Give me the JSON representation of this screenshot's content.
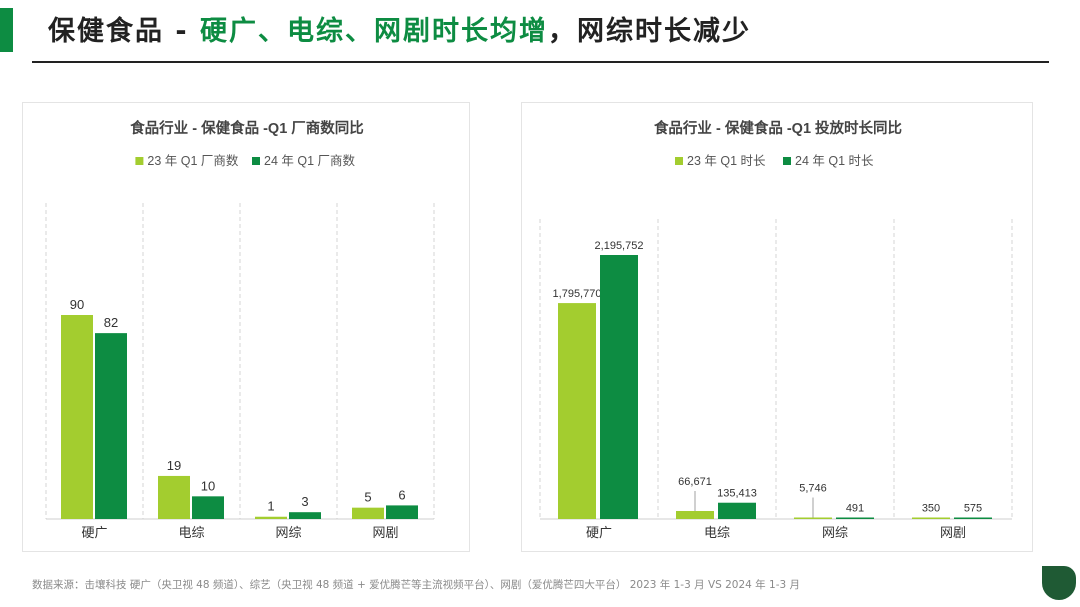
{
  "title": {
    "prefix": "保健食品 - ",
    "highlight": "硬广、电综、网剧时长均增",
    "suffix": "，网综时长减少"
  },
  "colors": {
    "series23": "#a3cd2f",
    "series24": "#0d8c42",
    "accent": "#0d8c42"
  },
  "chart_data": [
    {
      "type": "bar",
      "title": "食品行业 - 保健食品 -Q1 厂商数同比",
      "categories": [
        "硬广",
        "电综",
        "网综",
        "网剧"
      ],
      "series": [
        {
          "name": "23 年 Q1 厂商数",
          "values": [
            90,
            19,
            1,
            5
          ],
          "labels": [
            "90",
            "19",
            "1",
            "5"
          ]
        },
        {
          "name": "24 年 Q1 厂商数",
          "values": [
            82,
            10,
            3,
            6
          ],
          "labels": [
            "82",
            "10",
            "3",
            "6"
          ]
        }
      ],
      "ylim": [
        0,
        90
      ],
      "legend": "top",
      "xlabel": "",
      "ylabel": ""
    },
    {
      "type": "bar",
      "title": "食品行业 - 保健食品 -Q1 投放时长同比",
      "categories": [
        "硬广",
        "电综",
        "网综",
        "网剧"
      ],
      "series": [
        {
          "name": "23 年 Q1 时长",
          "values": [
            1795770,
            66671,
            5746,
            350
          ],
          "labels": [
            "1,795,770",
            "66,671",
            "5,746",
            "350"
          ]
        },
        {
          "name": "24 年 Q1 时长",
          "values": [
            2195752,
            135413,
            491,
            575
          ],
          "labels": [
            "2,195,752",
            "135,413",
            "491",
            "575"
          ]
        }
      ],
      "ylim": [
        0,
        2195752
      ],
      "legend": "top",
      "xlabel": "",
      "ylabel": ""
    }
  ],
  "footer": "数据来源：击壤科技 硬广（央卫视 48 频道）、综艺（央卫视 48 频道 + 爱优腾芒等主流视频平台）、网剧（爱优腾芒四大平台） 2023 年 1-3 月 VS 2024 年 1-3 月"
}
